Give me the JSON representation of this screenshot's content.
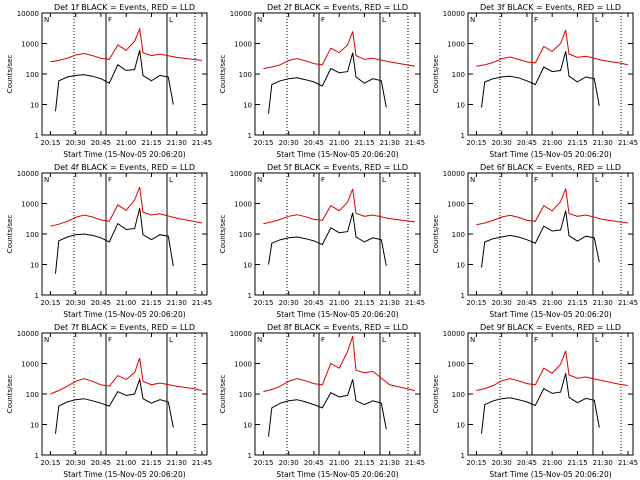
{
  "title_template": "Det {det}f BLACK = Events, RED = LLD",
  "xlabel": "Start Time (15-Nov-05 20:06:20)",
  "ylabel": "Counts/sec",
  "xticks": [
    "20:15",
    "20:30",
    "20:45",
    "21:00",
    "21:15",
    "21:30",
    "21:45"
  ],
  "yticks": [
    "1",
    "10",
    "100",
    "1000",
    "10000"
  ],
  "ylim": [
    1,
    10000
  ],
  "xlim_minutes": [
    20.0,
    21.8
  ],
  "marker_labels": {
    "N": "N",
    "F": "F",
    "L": "L"
  },
  "colors": {
    "events": "#000000",
    "lld": "#e00000"
  },
  "chart_data": [
    {
      "type": "line",
      "det": "1",
      "series": [
        {
          "name": "BLACK = Events",
          "x": [
            "20:18",
            "20:20",
            "20:25",
            "20:30",
            "20:35",
            "20:40",
            "20:45",
            "20:50",
            "20:55",
            "21:00",
            "21:05",
            "21:08",
            "21:10",
            "21:15",
            "21:20",
            "21:25",
            "21:28"
          ],
          "y": [
            6,
            60,
            80,
            90,
            95,
            85,
            70,
            50,
            200,
            130,
            140,
            600,
            90,
            60,
            90,
            80,
            10
          ]
        },
        {
          "name": "RED = LLD",
          "x": [
            "20:15",
            "20:20",
            "20:25",
            "20:30",
            "20:35",
            "20:40",
            "20:45",
            "20:50",
            "20:55",
            "21:00",
            "21:05",
            "21:08",
            "21:10",
            "21:15",
            "21:20",
            "21:30",
            "21:40",
            "21:45"
          ],
          "y": [
            250,
            280,
            330,
            420,
            470,
            400,
            330,
            300,
            900,
            600,
            1200,
            3000,
            500,
            400,
            450,
            350,
            300,
            280
          ]
        }
      ]
    },
    {
      "type": "line",
      "det": "2",
      "series": [
        {
          "name": "BLACK = Events",
          "x": [
            "20:18",
            "20:20",
            "20:25",
            "20:30",
            "20:35",
            "20:40",
            "20:45",
            "20:50",
            "20:55",
            "21:00",
            "21:05",
            "21:08",
            "21:10",
            "21:15",
            "21:20",
            "21:25",
            "21:28"
          ],
          "y": [
            5,
            45,
            60,
            70,
            75,
            65,
            55,
            40,
            150,
            110,
            120,
            500,
            80,
            50,
            70,
            60,
            8
          ]
        },
        {
          "name": "RED = LLD",
          "x": [
            "20:15",
            "20:20",
            "20:25",
            "20:30",
            "20:35",
            "20:40",
            "20:45",
            "20:50",
            "20:55",
            "21:00",
            "21:05",
            "21:08",
            "21:10",
            "21:15",
            "21:20",
            "21:30",
            "21:40",
            "21:45"
          ],
          "y": [
            150,
            170,
            200,
            280,
            320,
            270,
            220,
            200,
            700,
            500,
            900,
            2500,
            400,
            300,
            330,
            250,
            200,
            180
          ]
        }
      ]
    },
    {
      "type": "line",
      "det": "3",
      "series": [
        {
          "name": "BLACK = Events",
          "x": [
            "20:18",
            "20:20",
            "20:25",
            "20:30",
            "20:35",
            "20:40",
            "20:45",
            "20:50",
            "20:55",
            "21:00",
            "21:05",
            "21:08",
            "21:10",
            "21:15",
            "21:20",
            "21:25",
            "21:28"
          ],
          "y": [
            8,
            55,
            70,
            80,
            85,
            75,
            60,
            45,
            170,
            120,
            130,
            550,
            85,
            55,
            80,
            70,
            9
          ]
        },
        {
          "name": "RED = LLD",
          "x": [
            "20:15",
            "20:20",
            "20:25",
            "20:30",
            "20:35",
            "20:40",
            "20:45",
            "20:50",
            "20:55",
            "21:00",
            "21:05",
            "21:08",
            "21:10",
            "21:15",
            "21:20",
            "21:30",
            "21:40",
            "21:45"
          ],
          "y": [
            180,
            200,
            240,
            320,
            360,
            300,
            250,
            230,
            800,
            550,
            1000,
            2800,
            450,
            350,
            380,
            280,
            230,
            200
          ]
        }
      ]
    },
    {
      "type": "line",
      "det": "4",
      "series": [
        {
          "name": "BLACK = Events",
          "x": [
            "20:18",
            "20:20",
            "20:25",
            "20:30",
            "20:35",
            "20:40",
            "20:45",
            "20:50",
            "20:55",
            "21:00",
            "21:05",
            "21:08",
            "21:10",
            "21:15",
            "21:20",
            "21:25",
            "21:28"
          ],
          "y": [
            5,
            60,
            80,
            95,
            100,
            90,
            75,
            55,
            220,
            140,
            150,
            700,
            95,
            65,
            95,
            85,
            9
          ]
        },
        {
          "name": "RED = LLD",
          "x": [
            "20:15",
            "20:20",
            "20:25",
            "20:30",
            "20:35",
            "20:40",
            "20:45",
            "20:50",
            "20:55",
            "21:00",
            "21:05",
            "21:08",
            "21:10",
            "21:15",
            "21:20",
            "21:30",
            "21:40",
            "21:45"
          ],
          "y": [
            180,
            210,
            260,
            350,
            420,
            360,
            290,
            260,
            900,
            600,
            1300,
            3500,
            520,
            420,
            460,
            330,
            260,
            230
          ]
        }
      ]
    },
    {
      "type": "line",
      "det": "5",
      "series": [
        {
          "name": "BLACK = Events",
          "x": [
            "20:18",
            "20:20",
            "20:25",
            "20:30",
            "20:35",
            "20:40",
            "20:45",
            "20:50",
            "20:55",
            "21:00",
            "21:05",
            "21:08",
            "21:10",
            "21:15",
            "21:20",
            "21:25",
            "21:28"
          ],
          "y": [
            10,
            50,
            65,
            75,
            80,
            70,
            60,
            45,
            160,
            110,
            120,
            500,
            80,
            55,
            75,
            65,
            9
          ]
        },
        {
          "name": "RED = LLD",
          "x": [
            "20:15",
            "20:20",
            "20:25",
            "20:30",
            "20:35",
            "20:40",
            "20:45",
            "20:50",
            "20:55",
            "21:00",
            "21:05",
            "21:08",
            "21:10",
            "21:15",
            "21:20",
            "21:30",
            "21:40",
            "21:45"
          ],
          "y": [
            220,
            250,
            300,
            380,
            430,
            370,
            300,
            280,
            850,
            580,
            1100,
            3000,
            480,
            380,
            420,
            320,
            270,
            250
          ]
        }
      ]
    },
    {
      "type": "line",
      "det": "6",
      "series": [
        {
          "name": "BLACK = Events",
          "x": [
            "20:18",
            "20:20",
            "20:25",
            "20:30",
            "20:35",
            "20:40",
            "20:45",
            "20:50",
            "20:55",
            "21:00",
            "21:05",
            "21:08",
            "21:10",
            "21:15",
            "21:20",
            "21:25",
            "21:28"
          ],
          "y": [
            8,
            55,
            70,
            80,
            90,
            80,
            65,
            50,
            180,
            125,
            135,
            580,
            88,
            58,
            85,
            75,
            12
          ]
        },
        {
          "name": "RED = LLD",
          "x": [
            "20:15",
            "20:20",
            "20:25",
            "20:30",
            "20:35",
            "20:40",
            "20:45",
            "20:50",
            "20:55",
            "21:00",
            "21:05",
            "21:08",
            "21:10",
            "21:15",
            "21:20",
            "21:30",
            "21:40",
            "21:45"
          ],
          "y": [
            200,
            230,
            280,
            360,
            410,
            350,
            280,
            260,
            850,
            570,
            1150,
            3100,
            470,
            380,
            420,
            300,
            250,
            230
          ]
        }
      ]
    },
    {
      "type": "line",
      "det": "7",
      "series": [
        {
          "name": "BLACK = Events",
          "x": [
            "20:18",
            "20:20",
            "20:25",
            "20:30",
            "20:35",
            "20:40",
            "20:45",
            "20:50",
            "20:55",
            "21:00",
            "21:05",
            "21:08",
            "21:10",
            "21:15",
            "21:20",
            "21:25",
            "21:28"
          ],
          "y": [
            5,
            40,
            55,
            65,
            70,
            60,
            50,
            40,
            120,
            90,
            100,
            300,
            70,
            50,
            65,
            55,
            8
          ]
        },
        {
          "name": "RED = LLD",
          "x": [
            "20:15",
            "20:20",
            "20:25",
            "20:30",
            "20:35",
            "20:40",
            "20:45",
            "20:50",
            "20:55",
            "21:00",
            "21:05",
            "21:08",
            "21:10",
            "21:15",
            "21:20",
            "21:30",
            "21:40",
            "21:45"
          ],
          "y": [
            100,
            130,
            180,
            260,
            320,
            260,
            200,
            180,
            400,
            300,
            500,
            1500,
            260,
            200,
            230,
            180,
            150,
            130
          ]
        }
      ]
    },
    {
      "type": "line",
      "det": "8",
      "series": [
        {
          "name": "BLACK = Events",
          "x": [
            "20:18",
            "20:20",
            "20:25",
            "20:30",
            "20:35",
            "20:40",
            "20:45",
            "20:50",
            "20:55",
            "21:00",
            "21:05",
            "21:08",
            "21:10",
            "21:15",
            "21:20",
            "21:25",
            "21:28"
          ],
          "y": [
            4,
            35,
            50,
            60,
            65,
            55,
            45,
            35,
            110,
            80,
            90,
            300,
            60,
            45,
            60,
            50,
            7
          ]
        },
        {
          "name": "RED = LLD",
          "x": [
            "20:15",
            "20:20",
            "20:25",
            "20:30",
            "20:35",
            "20:40",
            "20:45",
            "20:50",
            "20:55",
            "21:00",
            "21:05",
            "21:08",
            "21:10",
            "21:15",
            "21:20",
            "21:30",
            "21:40",
            "21:45"
          ],
          "y": [
            120,
            140,
            180,
            260,
            320,
            270,
            220,
            200,
            1000,
            700,
            2500,
            8000,
            600,
            500,
            550,
            200,
            150,
            130
          ]
        }
      ]
    },
    {
      "type": "line",
      "det": "9",
      "series": [
        {
          "name": "BLACK = Events",
          "x": [
            "20:18",
            "20:20",
            "20:25",
            "20:30",
            "20:35",
            "20:40",
            "20:45",
            "20:50",
            "20:55",
            "21:00",
            "21:05",
            "21:08",
            "21:10",
            "21:15",
            "21:20",
            "21:25",
            "21:28"
          ],
          "y": [
            5,
            45,
            60,
            70,
            75,
            65,
            55,
            42,
            150,
            105,
            115,
            480,
            78,
            52,
            72,
            62,
            8
          ]
        },
        {
          "name": "RED = LLD",
          "x": [
            "20:15",
            "20:20",
            "20:25",
            "20:30",
            "20:35",
            "20:40",
            "20:45",
            "20:50",
            "20:55",
            "21:00",
            "21:05",
            "21:08",
            "21:10",
            "21:15",
            "21:20",
            "21:30",
            "21:40",
            "21:45"
          ],
          "y": [
            130,
            150,
            190,
            270,
            320,
            270,
            220,
            200,
            700,
            480,
            950,
            2600,
            420,
            330,
            360,
            270,
            210,
            190
          ]
        }
      ]
    }
  ]
}
